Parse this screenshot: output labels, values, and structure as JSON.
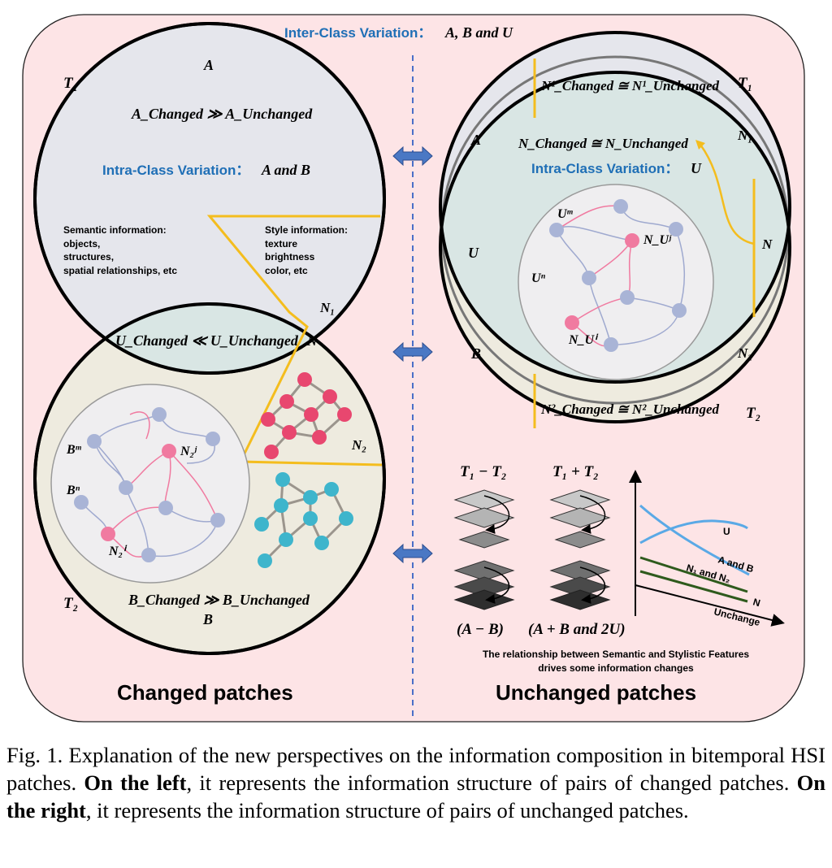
{
  "top_label": {
    "text": "Inter-Class Variation：",
    "math": "A, B and U"
  },
  "left": {
    "t1": "T₁",
    "t2": "T₂",
    "a_label": "A",
    "b_label": "B",
    "a_relation": "A_Changed ≫ A_Unchanged",
    "intra": {
      "text": "Intra-Class Variation：",
      "math": "A and B"
    },
    "semantic": {
      "title": "Semantic information:",
      "items": [
        "objects,",
        "structures,",
        "spatial relationships, etc"
      ]
    },
    "style": {
      "title": "Style information:",
      "items": [
        "texture",
        "brightness",
        "color, etc"
      ]
    },
    "n1": "N₁",
    "n": "N",
    "n2": "N₂",
    "u_relation": "U_Changed ≪ U_Unchanged",
    "graph_labels": {
      "bm": "Bᵐ",
      "bn": "Bⁿ",
      "n2j": "N₂ʲ",
      "n2i": "N₂ⁱ"
    },
    "b_relation": "B_Changed ≫ B_Unchanged",
    "caption": "Changed patches"
  },
  "right": {
    "t1": "T₁",
    "t2": "T₂",
    "n1_rel": "N¹_Changed ≅ N¹_Unchanged",
    "n_rel": "N_Changed ≅ N_Unchanged",
    "n2_rel": "N²_Changed ≅ N²_Unchanged",
    "a": "A",
    "u": "U",
    "b": "B",
    "n1": "N₁",
    "n": "N",
    "n2": "N₂",
    "intra": {
      "text": "Intra-Class Variation：",
      "math": "U"
    },
    "graph_labels": {
      "um": "Uᵐ",
      "un": "Uⁿ",
      "nuj": "N_Uʲ",
      "nui": "N_Uⁱ"
    },
    "caption": "Unchanged patches"
  },
  "ops": {
    "diff": "T₁ − T₂",
    "sum": "T₁ + T₂",
    "diff_result": "(A − B)",
    "sum_result": "(A + B and 2U)",
    "relationship_line1": "The relationship between Semantic and Stylistic Features",
    "relationship_line2": "drives some information changes"
  },
  "mini_chart": {
    "series": [
      {
        "name": "U",
        "color": "#5aa9e6"
      },
      {
        "name": "A and B",
        "color": "#5aa9e6"
      },
      {
        "name": "N₁ and N₂",
        "color": "#2e5a1c"
      },
      {
        "name": "N",
        "color": "#2e5a1c"
      }
    ],
    "xlabel": "Unchange"
  },
  "caption": {
    "prefix": "Fig. 1.   Explanation of the new perspectives on the information composition in bitemporal HSI patches. ",
    "left_bold": "On the left",
    "mid": ", it represents the information structure of pairs of changed patches. ",
    "right_bold": "On the right",
    "suffix": ", it represents the information structure of pairs of unchanged patches."
  },
  "colors": {
    "panel": "#fde4e6",
    "circle_top": "#e5e6ec",
    "circle_bottom": "#eeebdf",
    "overlap": "#d9e6e4",
    "accent_blue": "#1f6fb6",
    "yellow": "#f4bd1e",
    "node_blue": "#a9b4d6",
    "node_pink": "#f07aa0",
    "red_node": "#e8476f",
    "teal_node": "#3eb5cc"
  }
}
